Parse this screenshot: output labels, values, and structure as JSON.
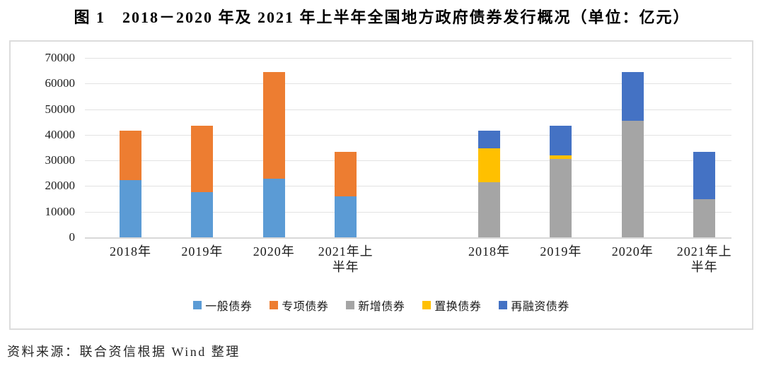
{
  "title": "图 1　2018－2020 年及 2021 年上半年全国地方政府债券发行概况（单位：亿元）",
  "source_note": "资料来源：联合资信根据 Wind 整理",
  "chart_data": {
    "type": "bar",
    "stacked": true,
    "title": "图 1 2018－2020 年及 2021 年上半年全国地方政府债券发行概况",
    "unit": "亿元",
    "ylim": [
      0,
      70000
    ],
    "yticks": [
      0,
      10000,
      20000,
      30000,
      40000,
      50000,
      60000,
      70000
    ],
    "grid": true,
    "legend_position": "bottom-center",
    "legend": [
      {
        "label": "一般债券",
        "color": "#5B9BD5"
      },
      {
        "label": "专项债券",
        "color": "#ED7D31"
      },
      {
        "label": "新增债券",
        "color": "#A5A5A5"
      },
      {
        "label": "置换债券",
        "color": "#FFC000"
      },
      {
        "label": "再融资债券",
        "color": "#4472C4"
      }
    ],
    "groups": [
      {
        "categories": [
          "2018年",
          "2019年",
          "2020年",
          "2021年上半年"
        ],
        "series": [
          {
            "name": "一般债券",
            "color": "#5B9BD5",
            "values": [
              22200,
              17700,
              23000,
              15900
            ]
          },
          {
            "name": "专项债券",
            "color": "#ED7D31",
            "values": [
              19400,
              25900,
              41400,
              17500
            ]
          }
        ]
      },
      {
        "categories": [
          "2018年",
          "2019年",
          "2020年",
          "2021年上半年"
        ],
        "series": [
          {
            "name": "新增债券",
            "color": "#A5A5A5",
            "values": [
              21500,
              30500,
              45500,
              14800
            ]
          },
          {
            "name": "置换债券",
            "color": "#FFC000",
            "values": [
              13200,
              1600,
              0,
              0
            ]
          },
          {
            "name": "再融资债券",
            "color": "#4472C4",
            "values": [
              6900,
              11500,
              18900,
              18600
            ]
          }
        ]
      }
    ]
  }
}
